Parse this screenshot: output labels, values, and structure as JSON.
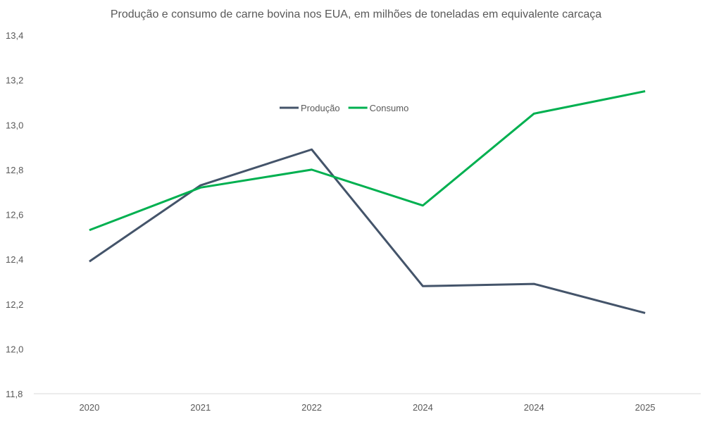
{
  "chart_data": {
    "type": "line",
    "title": "Produção e consumo de carne bovina nos EUA, em milhões de toneladas em equivalente carcaça",
    "xlabel": "",
    "ylabel": "",
    "categories": [
      "2020",
      "2021",
      "2022",
      "2024",
      "2024",
      "2025"
    ],
    "ylim": [
      11.8,
      13.4
    ],
    "yticks": [
      "11,8",
      "12,0",
      "12,2",
      "12,4",
      "12,6",
      "12,8",
      "13,0",
      "13,2",
      "13,4"
    ],
    "ytick_values": [
      11.8,
      12.0,
      12.2,
      12.4,
      12.6,
      12.8,
      13.0,
      13.2,
      13.4
    ],
    "grid": false,
    "legend_position": "top-center",
    "series": [
      {
        "name": "Produção",
        "color": "#44546A",
        "values": [
          12.39,
          12.73,
          12.89,
          12.28,
          12.29,
          12.16
        ]
      },
      {
        "name": "Consumo",
        "color": "#00B050",
        "values": [
          12.53,
          12.72,
          12.8,
          12.64,
          13.05,
          13.15
        ]
      }
    ]
  }
}
